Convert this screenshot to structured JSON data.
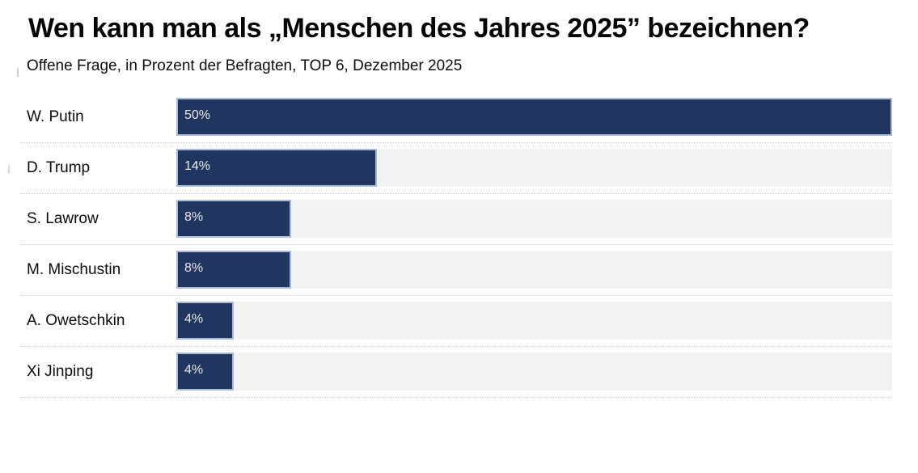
{
  "header": {
    "title": "Wen kann man als „Menschen des Jahres 2025” bezeichnen?",
    "subtitle": "Offene Frage, in Prozent der Befragten, TOP 6, Dezember 2025"
  },
  "chart_data": {
    "type": "bar",
    "orientation": "horizontal",
    "title": "Wen kann man als „Menschen des Jahres 2025” bezeichnen?",
    "subtitle": "Offene Frage, in Prozent der Befragten, TOP 6, Dezember 2025",
    "categories": [
      "W. Putin",
      "D. Trump",
      "S. Lawrow",
      "M. Mischustin",
      "A. Owetschkin",
      "Xi Jinping"
    ],
    "values": [
      50,
      14,
      8,
      8,
      4,
      4
    ],
    "value_labels": [
      "50%",
      "14%",
      "8%",
      "8%",
      "4%",
      "4%"
    ],
    "xlim": [
      0,
      50
    ],
    "grid": false,
    "legend": "none",
    "bar_color": "#20355f",
    "bar_border_color": "#aab9d6",
    "track_color": "#f2f2f2",
    "separator_style": "dotted",
    "separator_color": "#c9c9c9",
    "value_text_color": "#e9e9e9"
  }
}
